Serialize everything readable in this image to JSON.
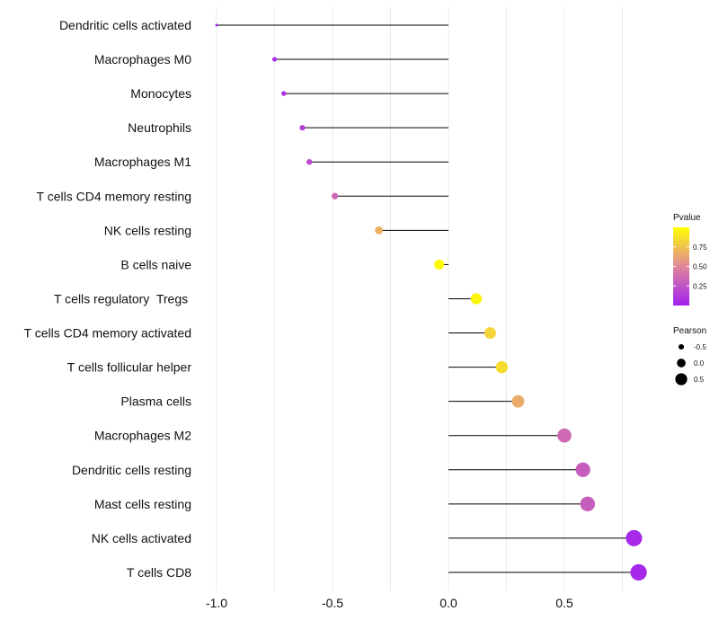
{
  "chart_data": {
    "type": "lollipop",
    "title": "",
    "xlabel": "",
    "ylabel": "",
    "xlim": [
      -1.0,
      0.82
    ],
    "xticks": [
      -1.0,
      -0.5,
      0.0,
      0.5
    ],
    "xtick_labels": [
      "-1.0",
      "-0.5",
      "0.0",
      "0.5"
    ],
    "grid": true,
    "categories": [
      "Dendritic cells activated",
      "Macrophages M0",
      "Monocytes",
      "Neutrophils",
      "Macrophages M1",
      "T cells CD4 memory resting",
      "NK cells resting",
      "B cells naive",
      "T cells regulatory  Tregs ",
      "T cells CD4 memory activated",
      "T cells follicular helper",
      "Plasma cells",
      "Macrophages M2",
      "Dendritic cells resting",
      "Mast cells resting",
      "NK cells activated",
      "T cells CD8"
    ],
    "pearson": [
      -1.0,
      -0.75,
      -0.71,
      -0.63,
      -0.6,
      -0.49,
      -0.3,
      -0.04,
      0.12,
      0.18,
      0.23,
      0.3,
      0.5,
      0.58,
      0.6,
      0.8,
      0.82
    ],
    "pvalue": [
      0.0,
      0.05,
      0.08,
      0.15,
      0.2,
      0.35,
      0.68,
      0.98,
      0.95,
      0.82,
      0.85,
      0.65,
      0.35,
      0.3,
      0.3,
      0.05,
      0.04
    ],
    "legend": {
      "color_title": "Pvalue",
      "color_ticks": [
        0.25,
        0.5,
        0.75
      ],
      "color_tick_labels": [
        "0.25",
        "0.50",
        "0.75"
      ],
      "color_low": "#a020f0",
      "color_mid": "#e0879a",
      "color_high": "#ffff00",
      "size_title": "Pearson",
      "size_values": [
        -0.5,
        0.0,
        0.5
      ],
      "size_labels": [
        "-0.5",
        "0.0",
        "0.5"
      ],
      "placement": "right"
    }
  }
}
